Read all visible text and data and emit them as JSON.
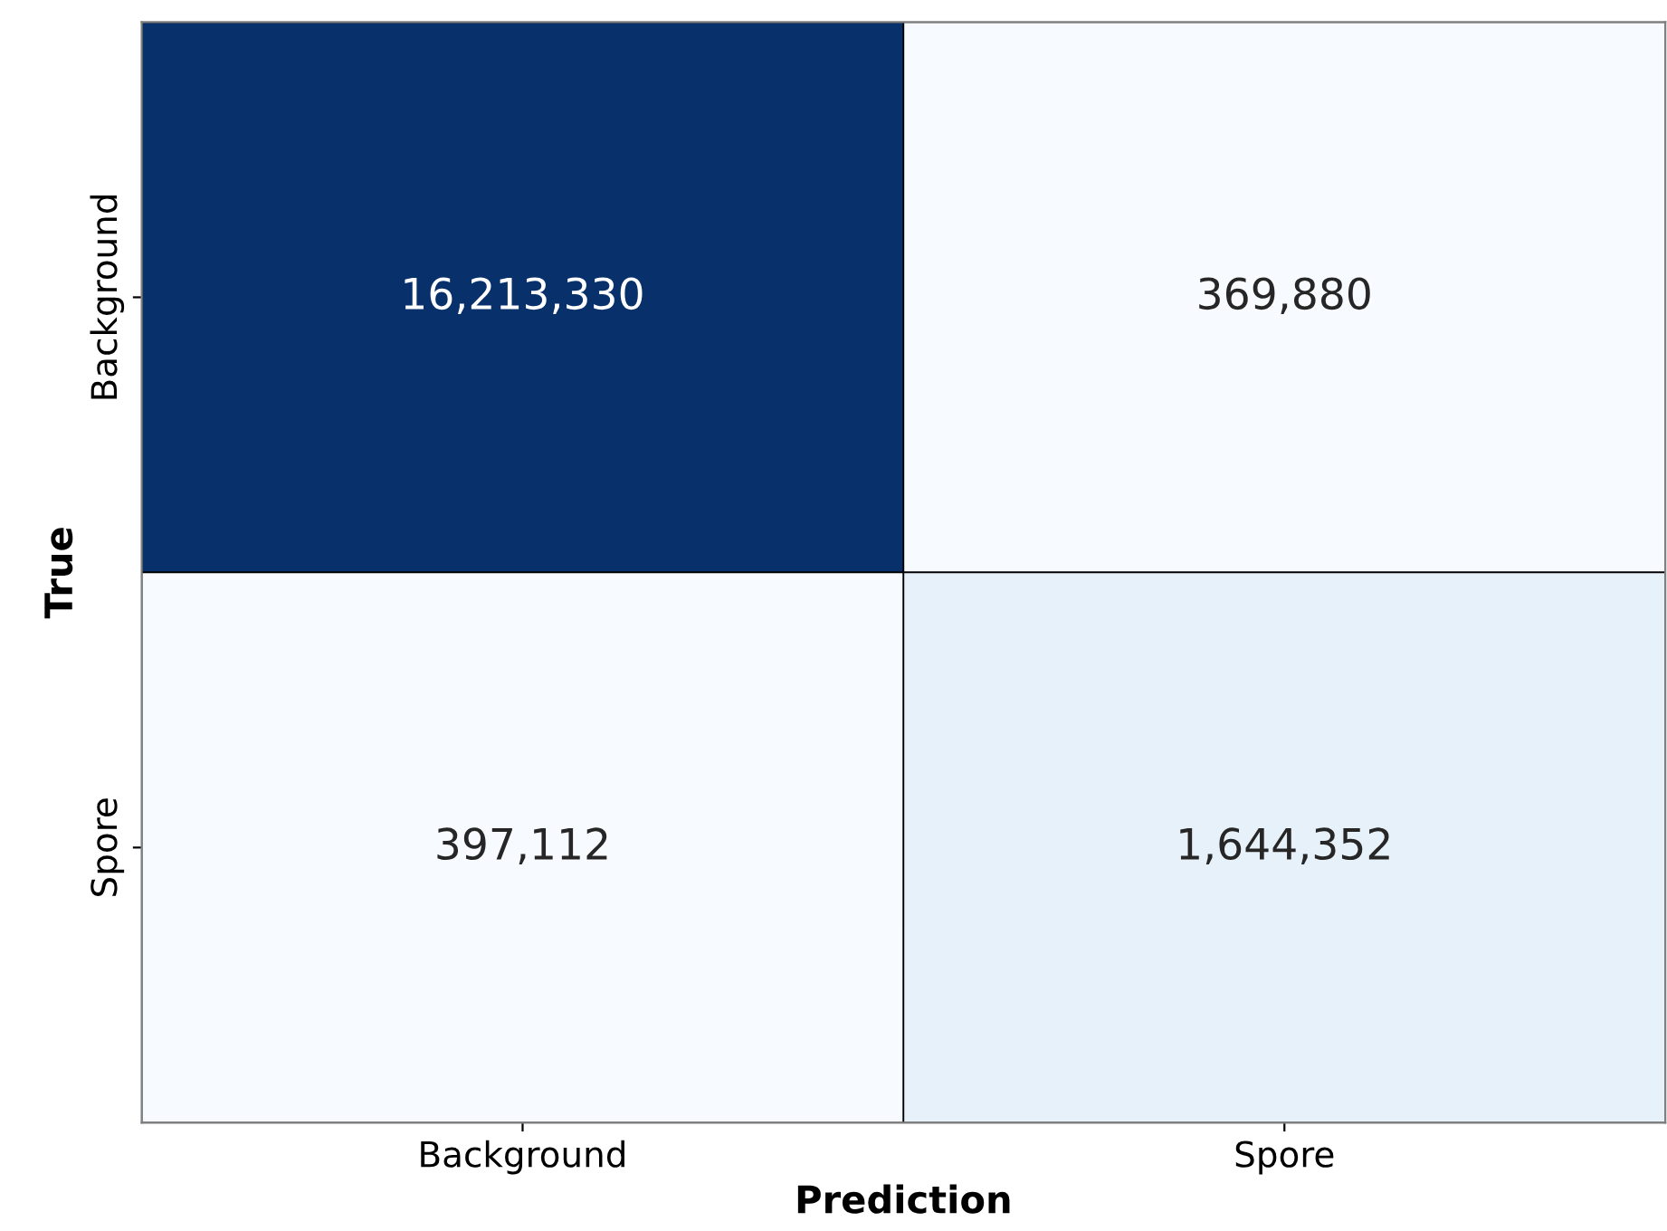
{
  "chart_data": {
    "type": "heatmap",
    "xlabel": "Prediction",
    "ylabel": "True",
    "categories": [
      "Background",
      "Spore"
    ],
    "y_categories": [
      "Background",
      "Spore"
    ],
    "cells": [
      [
        16213330,
        369880
      ],
      [
        397112,
        1644352
      ]
    ],
    "cell_labels": [
      [
        "16,213,330",
        "369,880"
      ],
      [
        "397,112",
        "1,644,352"
      ]
    ]
  }
}
